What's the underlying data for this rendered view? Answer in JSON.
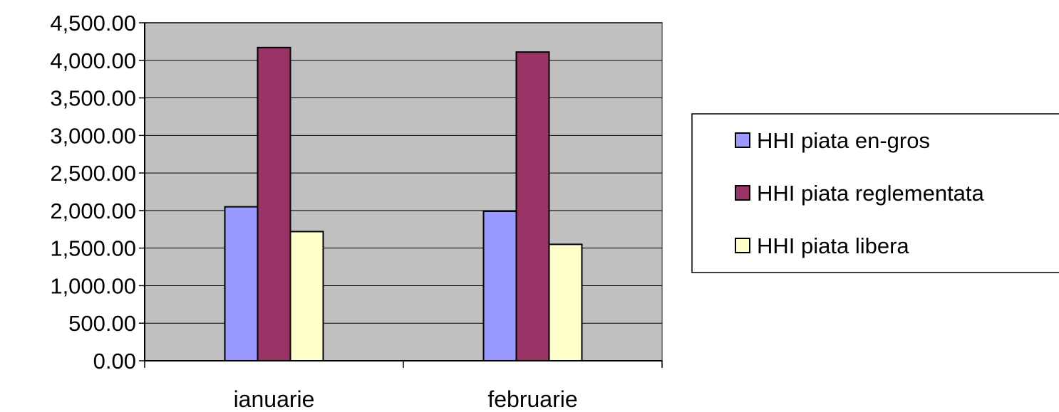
{
  "chart_data": {
    "type": "bar",
    "categories": [
      "ianuarie",
      "februarie"
    ],
    "series": [
      {
        "name": "HHI piata en-gros",
        "values": [
          2050,
          1990
        ],
        "color": "#9999ff"
      },
      {
        "name": "HHI piata reglementata",
        "values": [
          4170,
          4110
        ],
        "color": "#993366"
      },
      {
        "name": "HHI piata libera",
        "values": [
          1720,
          1550
        ],
        "color": "#ffffcc"
      }
    ],
    "y_ticks": [
      "0.00",
      "500.00",
      "1,000.00",
      "1,500.00",
      "2,000.00",
      "2,500.00",
      "3,000.00",
      "3,500.00",
      "4,000.00",
      "4,500.00"
    ],
    "ylim": [
      0,
      4500
    ],
    "y_step": 500,
    "grid": true,
    "plot_background": "#c0c0c0",
    "legend_position": "right",
    "title": "",
    "xlabel": "",
    "ylabel": ""
  }
}
